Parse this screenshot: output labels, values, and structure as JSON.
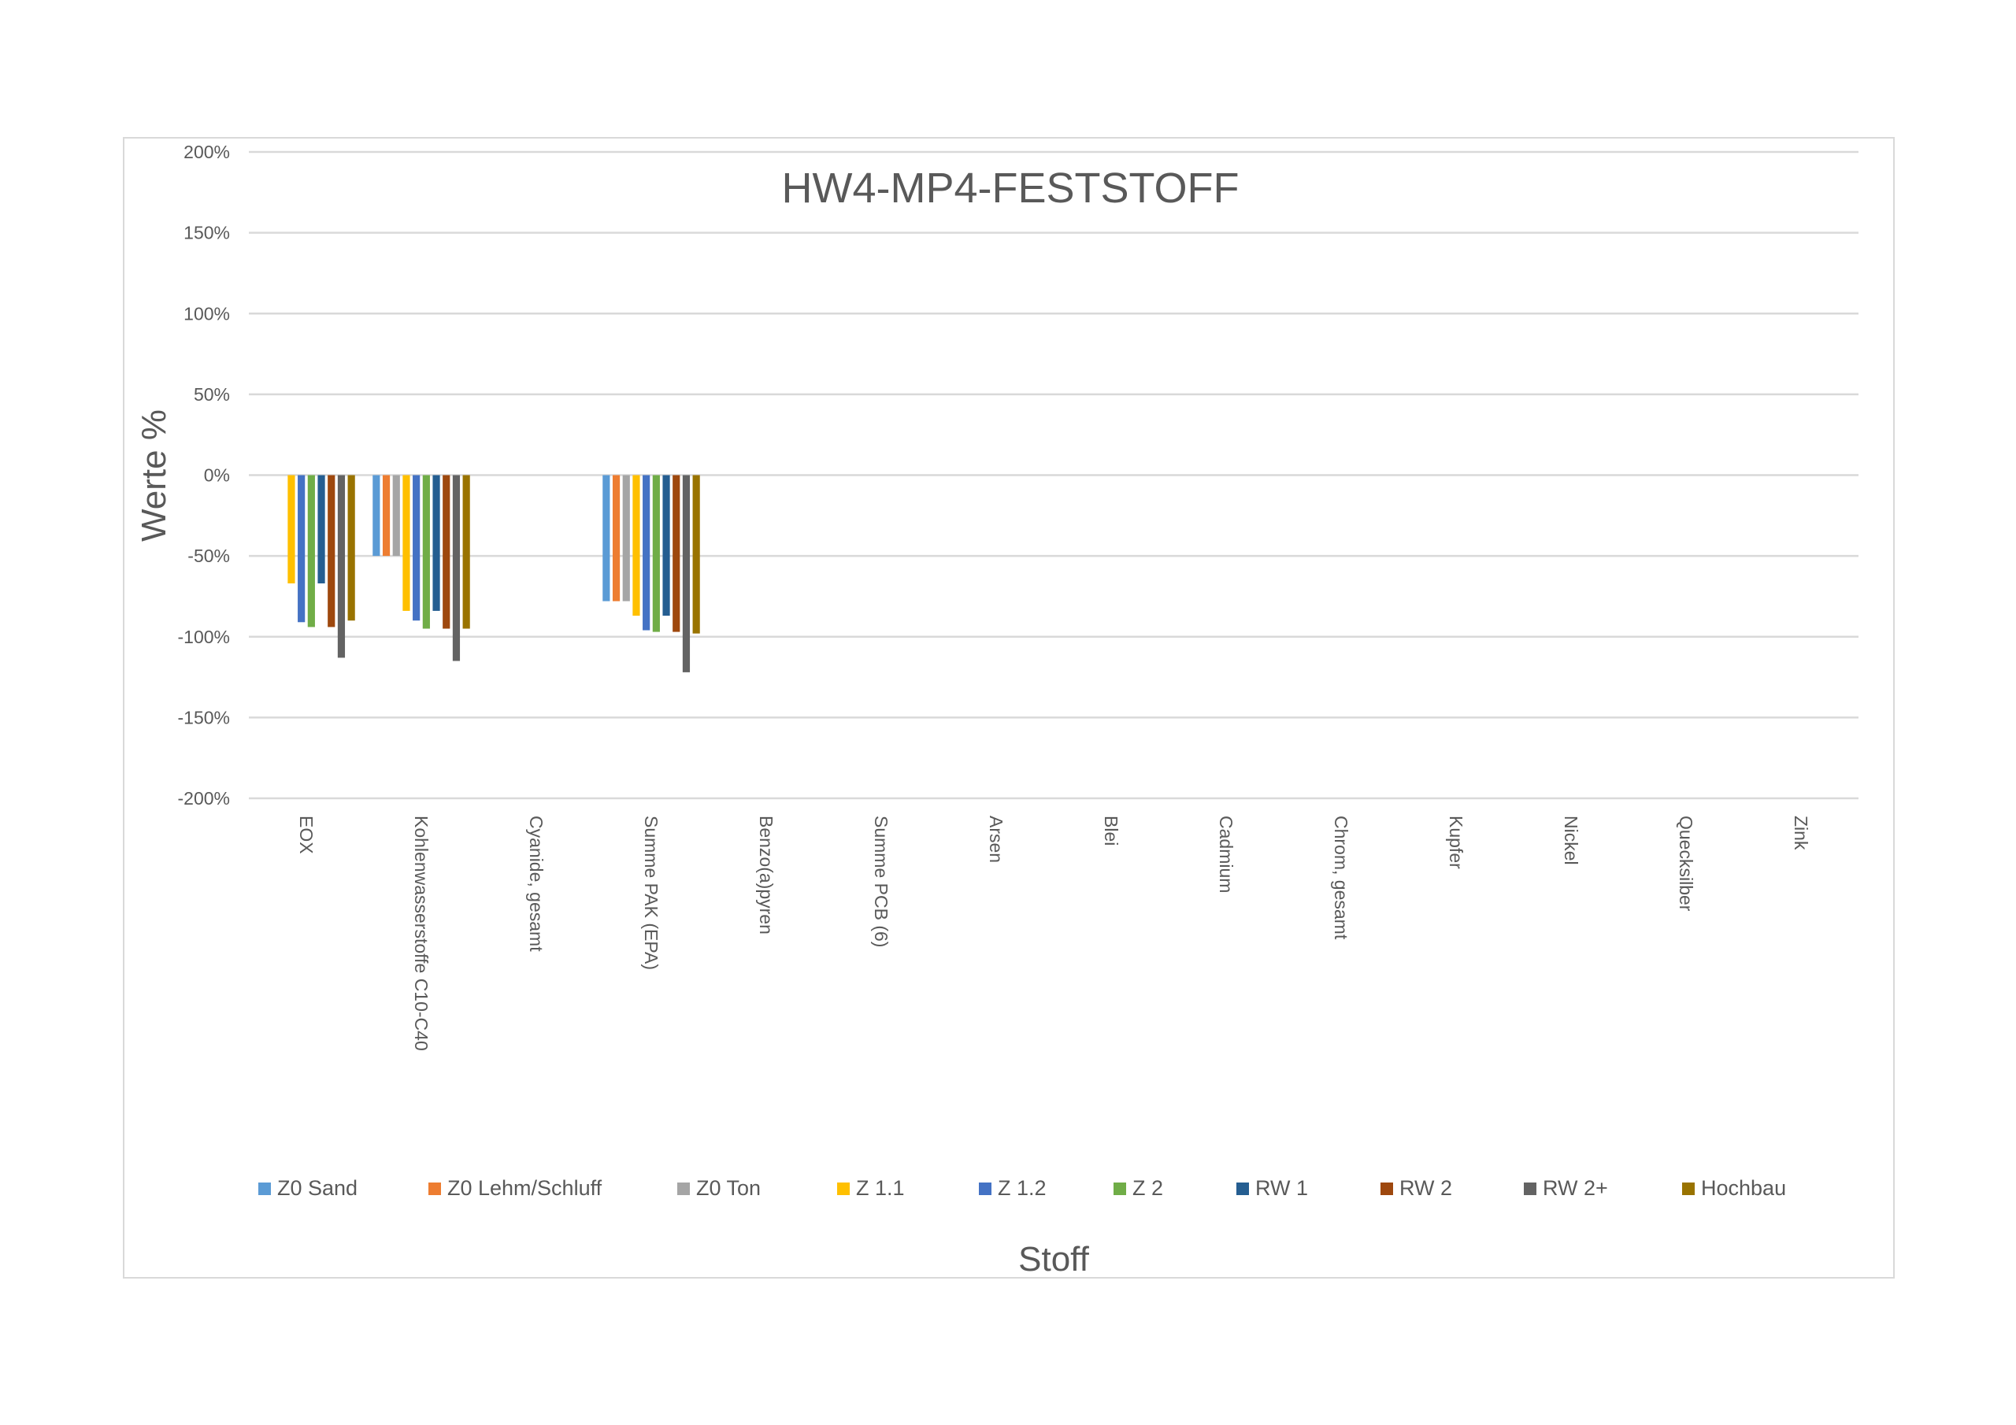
{
  "chart_data": {
    "type": "bar",
    "title": "HW4-MP4-FESTSTOFF",
    "xlabel": "Stoff",
    "ylabel": "Werte %",
    "ylim": [
      -200,
      200
    ],
    "yticks": [
      200,
      150,
      100,
      50,
      0,
      -50,
      -100,
      -150,
      -200
    ],
    "ytick_labels": [
      "200%",
      "150%",
      "100%",
      "50%",
      "0%",
      "-50%",
      "-100%",
      "-150%",
      "-200%"
    ],
    "grid": true,
    "legend_position": "bottom",
    "categories": [
      "EOX",
      "Kohlenwasserstoffe C10-C40",
      "Cyanide, gesamt",
      "Summe PAK (EPA)",
      "Benzo(a)pyren",
      "Summe PCB (6)",
      "Arsen",
      "Blei",
      "Cadmium",
      "Chrom, gesamt",
      "Kupfer",
      "Nickel",
      "Quecksilber",
      "Zink"
    ],
    "series": [
      {
        "name": "Z0 Sand",
        "color": "#5b9bd5",
        "values": [
          null,
          -50,
          null,
          -78,
          null,
          null,
          null,
          null,
          null,
          null,
          null,
          null,
          null,
          null
        ]
      },
      {
        "name": "Z0 Lehm/Schluff",
        "color": "#ed7d31",
        "values": [
          null,
          -50,
          null,
          -78,
          null,
          null,
          null,
          null,
          null,
          null,
          null,
          null,
          null,
          null
        ]
      },
      {
        "name": "Z0 Ton",
        "color": "#a5a5a5",
        "values": [
          null,
          -50,
          null,
          -78,
          null,
          null,
          null,
          null,
          null,
          null,
          null,
          null,
          null,
          null
        ]
      },
      {
        "name": "Z 1.1",
        "color": "#ffc000",
        "values": [
          -67,
          -84,
          null,
          -87,
          null,
          null,
          null,
          null,
          null,
          null,
          null,
          null,
          null,
          null
        ]
      },
      {
        "name": "Z 1.2",
        "color": "#4472c4",
        "values": [
          -91,
          -90,
          null,
          -96,
          null,
          null,
          null,
          null,
          null,
          null,
          null,
          null,
          null,
          null
        ]
      },
      {
        "name": "Z 2",
        "color": "#70ad47",
        "values": [
          -94,
          -95,
          null,
          -97,
          null,
          null,
          null,
          null,
          null,
          null,
          null,
          null,
          null,
          null
        ]
      },
      {
        "name": "RW 1",
        "color": "#255e91",
        "values": [
          -67,
          -84,
          null,
          -87,
          null,
          null,
          null,
          null,
          null,
          null,
          null,
          null,
          null,
          null
        ]
      },
      {
        "name": "RW 2",
        "color": "#9e480e",
        "values": [
          -94,
          -95,
          null,
          -97,
          null,
          null,
          null,
          null,
          null,
          null,
          null,
          null,
          null,
          null
        ]
      },
      {
        "name": "RW 2+",
        "color": "#636363",
        "values": [
          -113,
          -115,
          null,
          -122,
          null,
          null,
          null,
          null,
          null,
          null,
          null,
          null,
          null,
          null
        ]
      },
      {
        "name": "Hochbau",
        "color": "#997300",
        "values": [
          -90,
          -95,
          null,
          -98,
          null,
          null,
          null,
          null,
          null,
          null,
          null,
          null,
          null,
          null
        ]
      }
    ]
  }
}
